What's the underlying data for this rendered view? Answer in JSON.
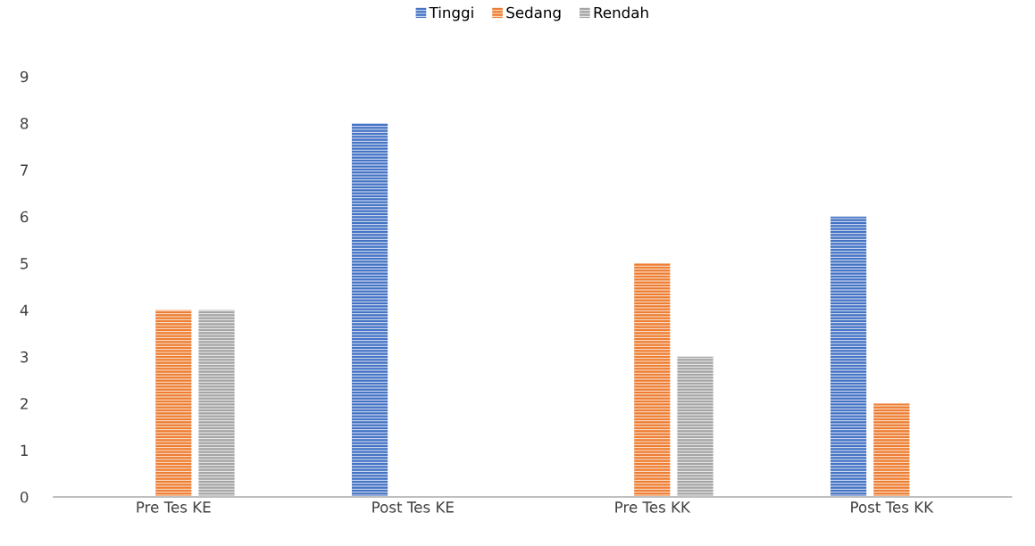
{
  "chart_data": {
    "type": "bar",
    "categories": [
      "Pre Tes KE",
      "Post Tes KE",
      "Pre Tes KK",
      "Post Tes KK"
    ],
    "series": [
      {
        "name": "Tinggi",
        "color": "#4472c4",
        "values": [
          0,
          8,
          0,
          6
        ]
      },
      {
        "name": "Sedang",
        "color": "#ed7d31",
        "values": [
          4,
          0,
          5,
          2
        ]
      },
      {
        "name": "Rendah",
        "color": "#a5a5a5",
        "values": [
          4,
          0,
          3,
          0
        ]
      }
    ],
    "ylim": [
      0,
      9
    ],
    "yticks": [
      0,
      1,
      2,
      3,
      4,
      5,
      6,
      7,
      8,
      9
    ],
    "grid": false,
    "legend": "top"
  }
}
